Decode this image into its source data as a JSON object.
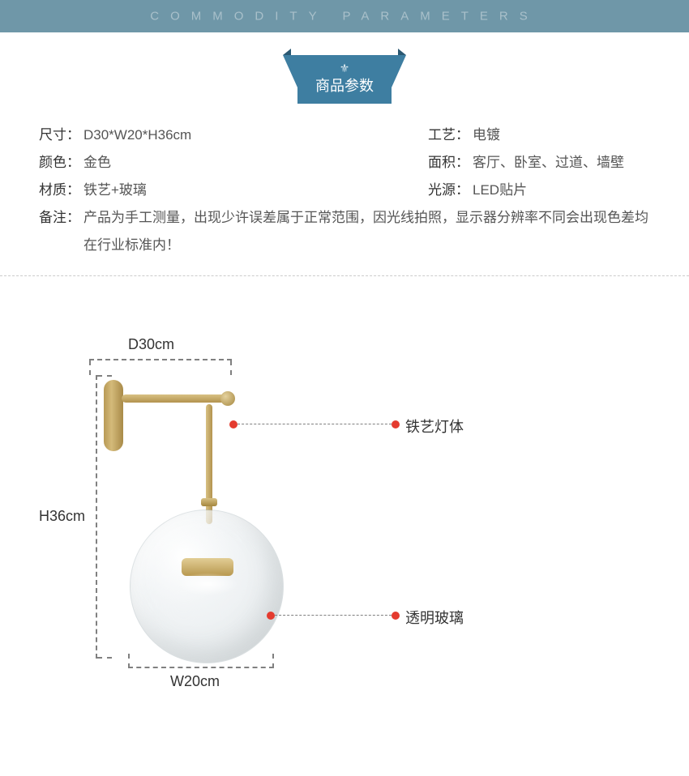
{
  "header": {
    "title_en": "COMMODITY PARAMETERS",
    "badge_label": "商品参数",
    "band_color": "#6f97a8",
    "band_text_color": "#a9c0ca",
    "badge_bg": "#3e7ea1",
    "badge_text_color": "#ffffff"
  },
  "specs": {
    "font_size_pt": 13,
    "row1": {
      "left_label": "尺寸：",
      "left_value": "D30*W20*H36cm",
      "right_label": "工艺：",
      "right_value": "电镀"
    },
    "row2": {
      "left_label": "颜色：",
      "left_value": "金色",
      "right_label": "面积：",
      "right_value": "客厅、卧室、过道、墙壁"
    },
    "row3": {
      "left_label": "材质：",
      "left_value": "铁艺+玻璃",
      "right_label": "光源：",
      "right_value": "LED贴片"
    },
    "note": {
      "label": "备注：",
      "text": "产品为手工测量，出现少许误差属于正常范围，因光线拍照，显示器分辨率不同会出现色差均在行业标准内！"
    }
  },
  "diagram": {
    "dimensions": {
      "depth_label": "D30cm",
      "height_label": "H36cm",
      "width_label": "W20cm"
    },
    "callouts": {
      "body": "铁艺灯体",
      "glass": "透明玻璃"
    },
    "colors": {
      "brass_light": "#d8c184",
      "brass_dark": "#a5873f",
      "dash_line": "#808080",
      "callout_dot": "#e43b2f",
      "glass_tint": "#dfe6e9"
    }
  }
}
